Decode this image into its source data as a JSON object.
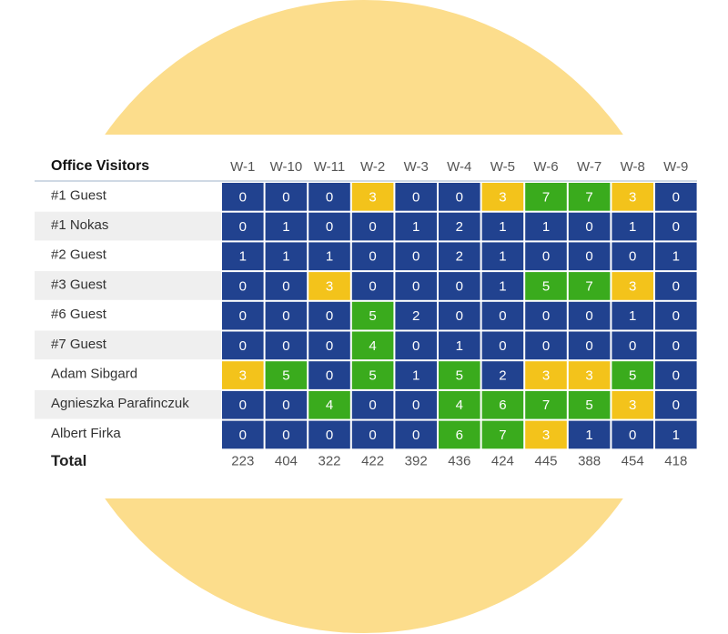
{
  "table": {
    "title": "Office Visitors",
    "columns": [
      "W-1",
      "W-10",
      "W-11",
      "W-2",
      "W-3",
      "W-4",
      "W-5",
      "W-6",
      "W-7",
      "W-8",
      "W-9"
    ],
    "rows": [
      {
        "name": "#1 Guest",
        "values": [
          0,
          0,
          0,
          3,
          0,
          0,
          3,
          7,
          7,
          3,
          0
        ]
      },
      {
        "name": "#1 Nokas",
        "values": [
          0,
          1,
          0,
          0,
          1,
          2,
          1,
          1,
          0,
          1,
          0
        ]
      },
      {
        "name": "#2 Guest",
        "values": [
          1,
          1,
          1,
          0,
          0,
          2,
          1,
          0,
          0,
          0,
          1
        ]
      },
      {
        "name": "#3 Guest",
        "values": [
          0,
          0,
          3,
          0,
          0,
          0,
          1,
          5,
          7,
          3,
          0
        ]
      },
      {
        "name": "#6 Guest",
        "values": [
          0,
          0,
          0,
          5,
          2,
          0,
          0,
          0,
          0,
          1,
          0
        ]
      },
      {
        "name": "#7 Guest",
        "values": [
          0,
          0,
          0,
          4,
          0,
          1,
          0,
          0,
          0,
          0,
          0
        ]
      },
      {
        "name": "Adam Sibgard",
        "values": [
          3,
          5,
          0,
          5,
          1,
          5,
          2,
          3,
          3,
          5,
          0
        ]
      },
      {
        "name": "Agnieszka Parafinczuk",
        "values": [
          0,
          0,
          4,
          0,
          0,
          4,
          6,
          7,
          5,
          3,
          0
        ]
      },
      {
        "name": "Albert Firka",
        "values": [
          0,
          0,
          0,
          0,
          0,
          6,
          7,
          3,
          1,
          0,
          1
        ]
      }
    ],
    "total_label": "Total",
    "totals": [
      223,
      404,
      322,
      422,
      392,
      436,
      424,
      445,
      388,
      454,
      418
    ],
    "colors": {
      "low": "#21428f",
      "mid": "#f3c31b",
      "high": "#3aab1d"
    }
  }
}
